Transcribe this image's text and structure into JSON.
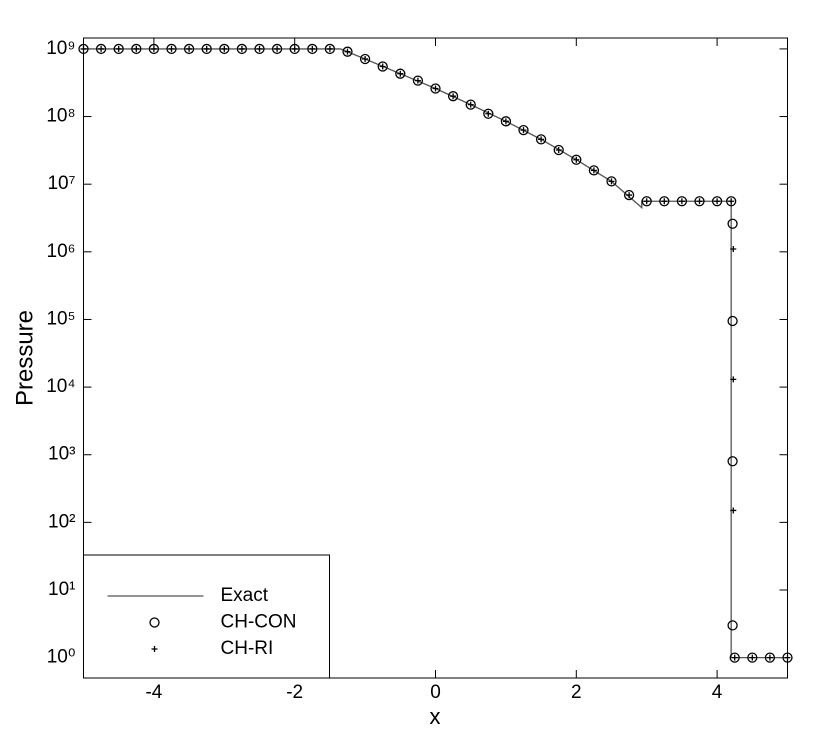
{
  "chart_data": {
    "type": "line",
    "x_label": "x",
    "y_label": "Pressure",
    "xlim": [
      -5,
      5
    ],
    "xticks": [
      -4,
      -2,
      0,
      2,
      4
    ],
    "ylim": [
      0.5,
      1450000000.0
    ],
    "log_y": true,
    "yticks": [
      {
        "value": 1,
        "label": "10⁰"
      },
      {
        "value": 10,
        "label": "10¹"
      },
      {
        "value": 100,
        "label": "10²"
      },
      {
        "value": 1000,
        "label": "10³"
      },
      {
        "value": 10000,
        "label": "10⁴"
      },
      {
        "value": 100000,
        "label": "10⁵"
      },
      {
        "value": 1000000,
        "label": "10⁶"
      },
      {
        "value": 10000000,
        "label": "10⁷"
      },
      {
        "value": 100000000,
        "label": "10⁸"
      },
      {
        "value": 1000000000,
        "label": "10⁹"
      }
    ],
    "legend": "lower left",
    "series": [
      {
        "name": "Exact",
        "color": "#555555",
        "style": "line",
        "x": [
          -5,
          -1.35,
          -1,
          -0.5,
          0,
          0.5,
          1,
          1.5,
          2,
          2.5,
          2.93,
          2.93,
          4.2,
          4.2,
          5
        ],
        "values": [
          1000000000.0,
          1000000000.0,
          710000000.0,
          430000000.0,
          260000000.0,
          150000000.0,
          85000000.0,
          46000000.0,
          23000000.0,
          11000000.0,
          4500000.0,
          5600000.0,
          5600000.0,
          1,
          1
        ]
      },
      {
        "name": "CH-CON",
        "color": "#000000",
        "style": "circle",
        "x": [
          -5,
          -4.75,
          -4.5,
          -4.25,
          -4,
          -3.75,
          -3.5,
          -3.25,
          -3,
          -2.75,
          -2.5,
          -2.25,
          -2,
          -1.75,
          -1.5,
          -1.25,
          -1,
          -0.75,
          -0.5,
          -0.25,
          0,
          0.25,
          0.5,
          0.75,
          1,
          1.25,
          1.5,
          1.75,
          2,
          2.25,
          2.5,
          2.75,
          3,
          3.25,
          3.5,
          3.75,
          4,
          4.2,
          4.22,
          4.22,
          4.22,
          4.22,
          4.25,
          4.5,
          4.75,
          5
        ],
        "values": [
          1000000000.0,
          1000000000.0,
          1000000000.0,
          1000000000.0,
          1000000000.0,
          1000000000.0,
          1000000000.0,
          1000000000.0,
          1000000000.0,
          1000000000.0,
          1000000000.0,
          1000000000.0,
          1000000000.0,
          1000000000.0,
          1000000000.0,
          910000000.0,
          710000000.0,
          550000000.0,
          430000000.0,
          340000000.0,
          260000000.0,
          200000000.0,
          150000000.0,
          110000000.0,
          85000000.0,
          63000000.0,
          46000000.0,
          32000000.0,
          23000000.0,
          16000000.0,
          11000000.0,
          6900000.0,
          5600000.0,
          5600000.0,
          5600000.0,
          5600000.0,
          5600000.0,
          5600000.0,
          2600000.0,
          95000.0,
          800,
          3,
          1,
          1,
          1,
          1
        ]
      },
      {
        "name": "CH-RI",
        "color": "#000000",
        "style": "plus",
        "x": [
          -5,
          -4.75,
          -4.5,
          -4.25,
          -4,
          -3.75,
          -3.5,
          -3.25,
          -3,
          -2.75,
          -2.5,
          -2.25,
          -2,
          -1.75,
          -1.5,
          -1.25,
          -1,
          -0.75,
          -0.5,
          -0.25,
          0,
          0.25,
          0.5,
          0.75,
          1,
          1.25,
          1.5,
          1.75,
          2,
          2.25,
          2.5,
          2.75,
          3,
          3.25,
          3.5,
          3.75,
          4,
          4.2,
          4.23,
          4.23,
          4.23,
          4.25,
          4.5,
          4.75,
          5
        ],
        "values": [
          1000000000.0,
          1000000000.0,
          1000000000.0,
          1000000000.0,
          1000000000.0,
          1000000000.0,
          1000000000.0,
          1000000000.0,
          1000000000.0,
          1000000000.0,
          1000000000.0,
          1000000000.0,
          1000000000.0,
          1000000000.0,
          1000000000.0,
          910000000.0,
          710000000.0,
          550000000.0,
          430000000.0,
          340000000.0,
          260000000.0,
          200000000.0,
          150000000.0,
          110000000.0,
          85000000.0,
          63000000.0,
          46000000.0,
          32000000.0,
          23000000.0,
          16000000.0,
          11000000.0,
          6900000.0,
          5600000.0,
          5600000.0,
          5600000.0,
          5600000.0,
          5600000.0,
          5600000.0,
          1100000.0,
          13000.0,
          150,
          1,
          1,
          1,
          1
        ]
      }
    ]
  }
}
